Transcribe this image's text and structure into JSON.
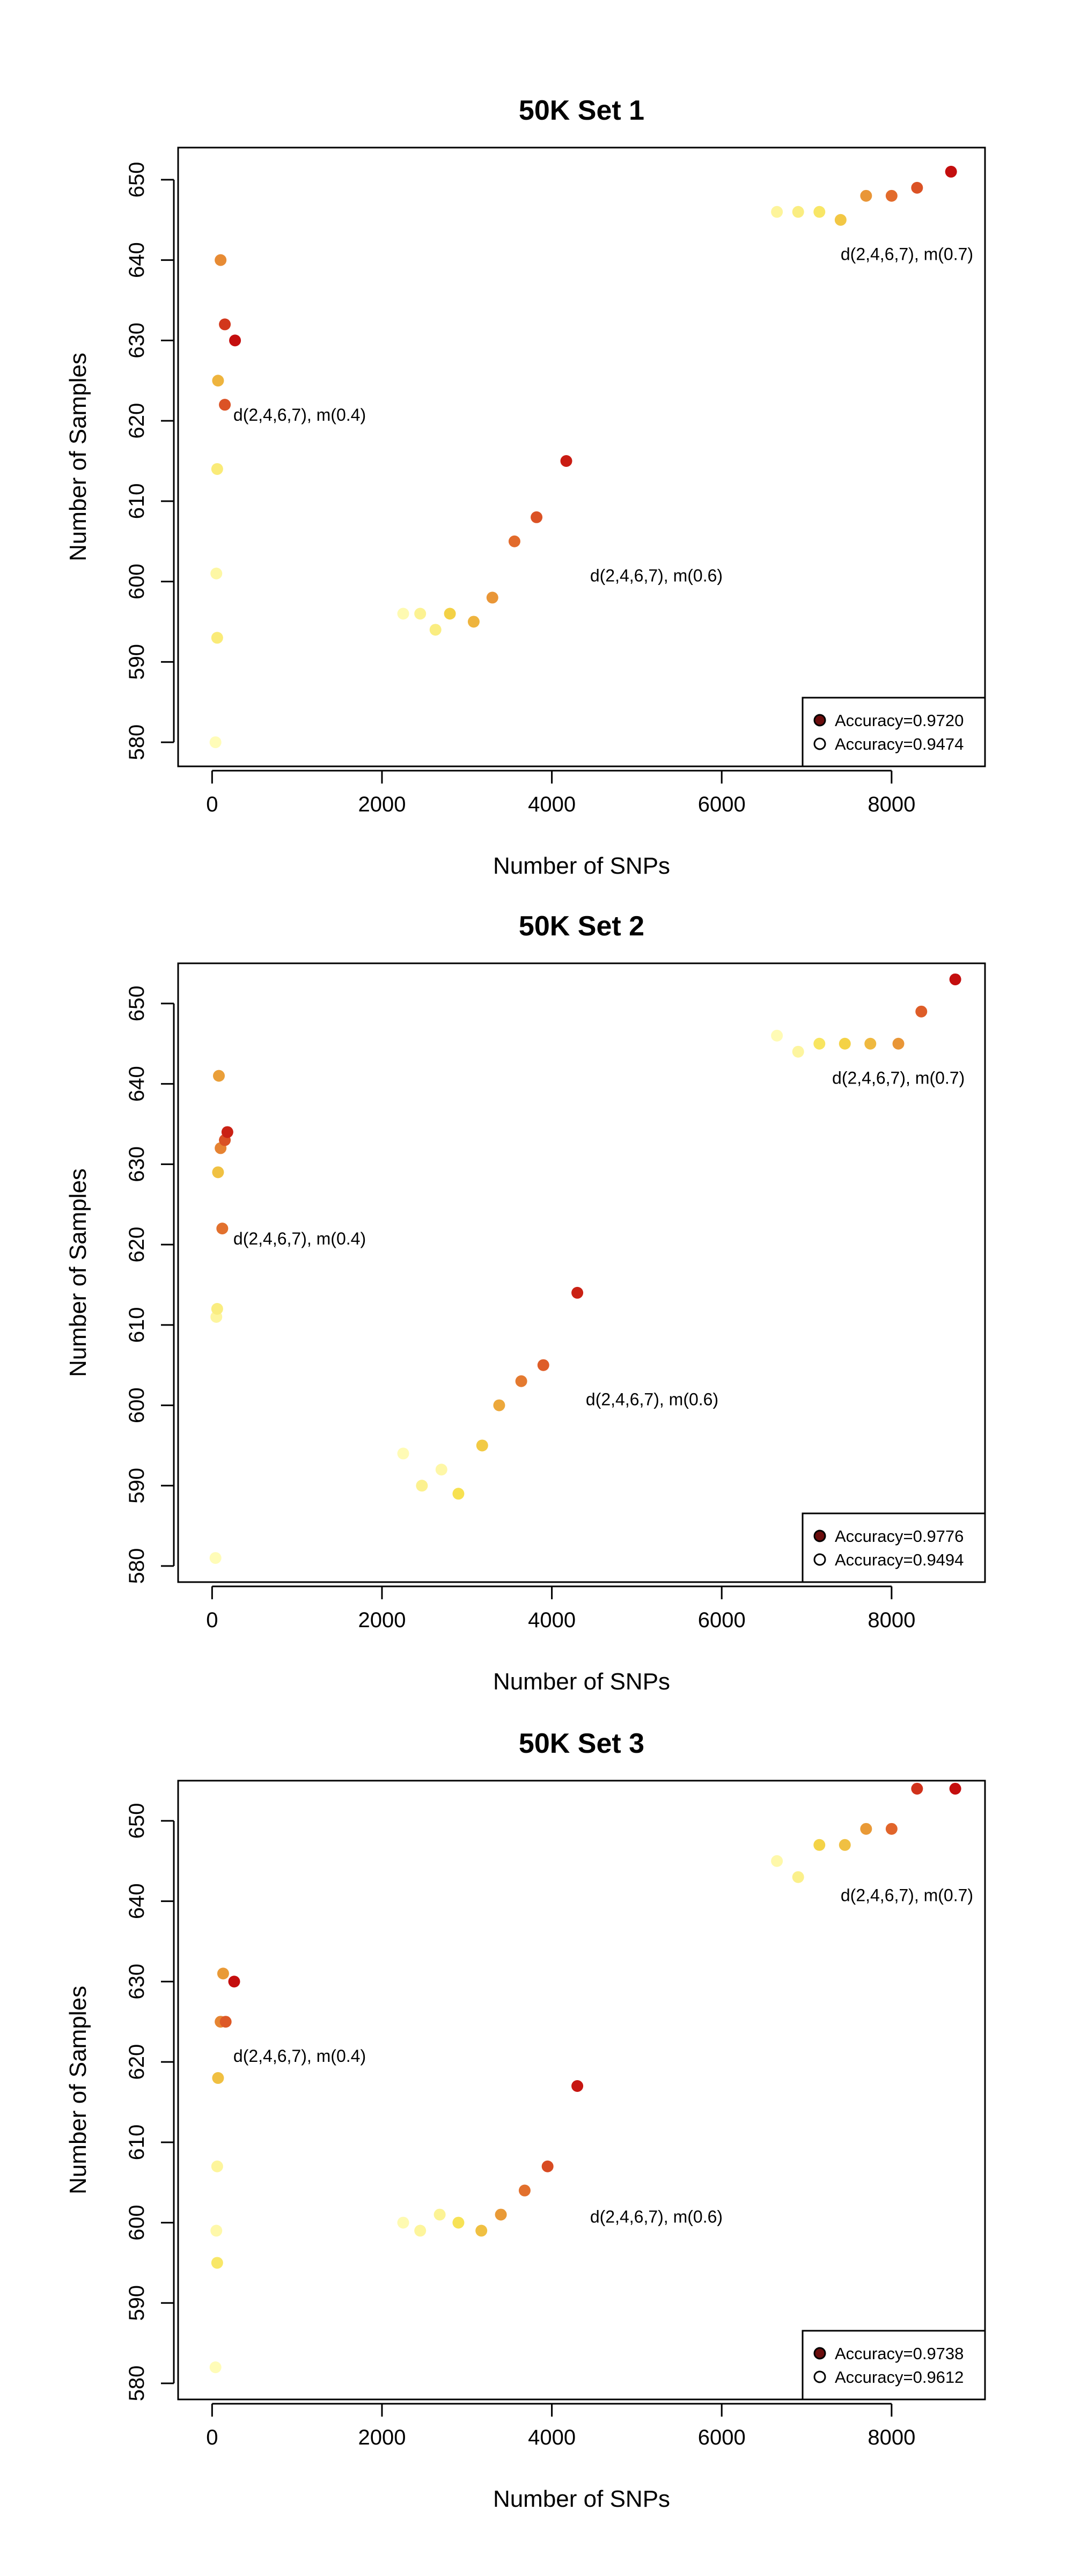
{
  "chart_data": [
    {
      "type": "scatter",
      "title": "50K Set 1",
      "xlabel": "Number of SNPs",
      "ylabel": "Number of Samples",
      "xlim": [
        -400,
        9100
      ],
      "ylim": [
        577,
        654
      ],
      "xticks": [
        "0",
        "2000",
        "4000",
        "6000",
        "8000"
      ],
      "yticks": [
        "580",
        "590",
        "600",
        "610",
        "620",
        "630",
        "640",
        "650"
      ],
      "grid": false,
      "legend_position": "bottom-right",
      "legend": [
        "Accuracy=0.9720",
        "Accuracy=0.9474"
      ],
      "color_scale": {
        "low": "#fffcb8",
        "high": "#c40e0e",
        "low_accuracy": 0.9474,
        "high_accuracy": 0.972
      },
      "annotations": [
        {
          "text": "d(2,4,6,7), m(0.4)",
          "x": 250,
          "y": 620
        },
        {
          "text": "d(2,4,6,7), m(0.6)",
          "x": 4450,
          "y": 600
        },
        {
          "text": "d(2,4,6,7), m(0.7)",
          "x": 7400,
          "y": 640
        }
      ],
      "points": [
        {
          "x": 40,
          "y": 580,
          "acc": 0.9474
        },
        {
          "x": 60,
          "y": 593,
          "acc": 0.951
        },
        {
          "x": 50,
          "y": 601,
          "acc": 0.9485
        },
        {
          "x": 60,
          "y": 614,
          "acc": 0.951
        },
        {
          "x": 70,
          "y": 625,
          "acc": 0.958
        },
        {
          "x": 100,
          "y": 640,
          "acc": 0.962
        },
        {
          "x": 150,
          "y": 622,
          "acc": 0.967
        },
        {
          "x": 150,
          "y": 632,
          "acc": 0.969
        },
        {
          "x": 270,
          "y": 630,
          "acc": 0.972
        },
        {
          "x": 2250,
          "y": 596,
          "acc": 0.9478
        },
        {
          "x": 2450,
          "y": 596,
          "acc": 0.9495
        },
        {
          "x": 2630,
          "y": 594,
          "acc": 0.9505
        },
        {
          "x": 2800,
          "y": 596,
          "acc": 0.955
        },
        {
          "x": 3080,
          "y": 595,
          "acc": 0.958
        },
        {
          "x": 3300,
          "y": 598,
          "acc": 0.961
        },
        {
          "x": 3560,
          "y": 605,
          "acc": 0.965
        },
        {
          "x": 3820,
          "y": 608,
          "acc": 0.967
        },
        {
          "x": 4170,
          "y": 615,
          "acc": 0.971
        },
        {
          "x": 6650,
          "y": 646,
          "acc": 0.949
        },
        {
          "x": 6900,
          "y": 646,
          "acc": 0.9505
        },
        {
          "x": 7150,
          "y": 646,
          "acc": 0.952
        },
        {
          "x": 7400,
          "y": 645,
          "acc": 0.956
        },
        {
          "x": 7700,
          "y": 648,
          "acc": 0.961
        },
        {
          "x": 8000,
          "y": 648,
          "acc": 0.965
        },
        {
          "x": 8300,
          "y": 649,
          "acc": 0.967
        },
        {
          "x": 8700,
          "y": 651,
          "acc": 0.972
        }
      ]
    },
    {
      "type": "scatter",
      "title": "50K Set 2",
      "xlabel": "Number of SNPs",
      "ylabel": "Number of Samples",
      "xlim": [
        -400,
        9100
      ],
      "ylim": [
        578,
        655
      ],
      "xticks": [
        "0",
        "2000",
        "4000",
        "6000",
        "8000"
      ],
      "yticks": [
        "580",
        "590",
        "600",
        "610",
        "620",
        "630",
        "640",
        "650"
      ],
      "grid": false,
      "legend_position": "bottom-right",
      "legend": [
        "Accuracy=0.9776",
        "Accuracy=0.9494"
      ],
      "color_scale": {
        "low": "#fffcb8",
        "high": "#c40e0e",
        "low_accuracy": 0.9494,
        "high_accuracy": 0.9776
      },
      "annotations": [
        {
          "text": "d(2,4,6,7), m(0.4)",
          "x": 250,
          "y": 620
        },
        {
          "text": "d(2,4,6,7), m(0.6)",
          "x": 4400,
          "y": 600
        },
        {
          "text": "d(2,4,6,7), m(0.7)",
          "x": 7300,
          "y": 640
        }
      ],
      "points": [
        {
          "x": 40,
          "y": 581,
          "acc": 0.9494
        },
        {
          "x": 50,
          "y": 611,
          "acc": 0.951
        },
        {
          "x": 60,
          "y": 612,
          "acc": 0.953
        },
        {
          "x": 70,
          "y": 629,
          "acc": 0.96
        },
        {
          "x": 80,
          "y": 641,
          "acc": 0.964
        },
        {
          "x": 100,
          "y": 632,
          "acc": 0.967
        },
        {
          "x": 120,
          "y": 622,
          "acc": 0.969
        },
        {
          "x": 150,
          "y": 633,
          "acc": 0.972
        },
        {
          "x": 180,
          "y": 634,
          "acc": 0.976
        },
        {
          "x": 2250,
          "y": 594,
          "acc": 0.9496
        },
        {
          "x": 2470,
          "y": 590,
          "acc": 0.952
        },
        {
          "x": 2700,
          "y": 592,
          "acc": 0.9505
        },
        {
          "x": 2900,
          "y": 589,
          "acc": 0.956
        },
        {
          "x": 3180,
          "y": 595,
          "acc": 0.959
        },
        {
          "x": 3380,
          "y": 600,
          "acc": 0.963
        },
        {
          "x": 3640,
          "y": 603,
          "acc": 0.968
        },
        {
          "x": 3900,
          "y": 605,
          "acc": 0.971
        },
        {
          "x": 4300,
          "y": 614,
          "acc": 0.976
        },
        {
          "x": 6650,
          "y": 646,
          "acc": 0.9496
        },
        {
          "x": 6900,
          "y": 644,
          "acc": 0.951
        },
        {
          "x": 7150,
          "y": 645,
          "acc": 0.955
        },
        {
          "x": 7450,
          "y": 645,
          "acc": 0.958
        },
        {
          "x": 7750,
          "y": 645,
          "acc": 0.961
        },
        {
          "x": 8080,
          "y": 645,
          "acc": 0.965
        },
        {
          "x": 8350,
          "y": 649,
          "acc": 0.971
        },
        {
          "x": 8750,
          "y": 653,
          "acc": 0.9776
        }
      ]
    },
    {
      "type": "scatter",
      "title": "50K Set 3",
      "xlabel": "Number of SNPs",
      "ylabel": "Number of Samples",
      "xlim": [
        -400,
        9100
      ],
      "ylim": [
        578,
        655
      ],
      "xticks": [
        "0",
        "2000",
        "4000",
        "6000",
        "8000"
      ],
      "yticks": [
        "580",
        "590",
        "600",
        "610",
        "620",
        "630",
        "640",
        "650"
      ],
      "grid": false,
      "legend_position": "bottom-right",
      "legend": [
        "Accuracy=0.9738",
        "Accuracy=0.9612"
      ],
      "color_scale": {
        "low": "#fffcb8",
        "high": "#c40e0e",
        "low_accuracy": 0.9612,
        "high_accuracy": 0.9738
      },
      "annotations": [
        {
          "text": "d(2,4,6,7), m(0.4)",
          "x": 250,
          "y": 620
        },
        {
          "text": "d(2,4,6,7), m(0.6)",
          "x": 4450,
          "y": 600
        },
        {
          "text": "d(2,4,6,7), m(0.7)",
          "x": 7400,
          "y": 640
        }
      ],
      "points": [
        {
          "x": 40,
          "y": 582,
          "acc": 0.9612
        },
        {
          "x": 60,
          "y": 595,
          "acc": 0.9635
        },
        {
          "x": 50,
          "y": 599,
          "acc": 0.9616
        },
        {
          "x": 60,
          "y": 607,
          "acc": 0.962
        },
        {
          "x": 70,
          "y": 618,
          "acc": 0.966
        },
        {
          "x": 100,
          "y": 625,
          "acc": 0.969
        },
        {
          "x": 130,
          "y": 631,
          "acc": 0.968
        },
        {
          "x": 160,
          "y": 625,
          "acc": 0.971
        },
        {
          "x": 260,
          "y": 630,
          "acc": 0.9738
        },
        {
          "x": 2250,
          "y": 600,
          "acc": 0.9614
        },
        {
          "x": 2450,
          "y": 599,
          "acc": 0.962
        },
        {
          "x": 2680,
          "y": 601,
          "acc": 0.9622
        },
        {
          "x": 2900,
          "y": 600,
          "acc": 0.964
        },
        {
          "x": 3170,
          "y": 599,
          "acc": 0.966
        },
        {
          "x": 3400,
          "y": 601,
          "acc": 0.968
        },
        {
          "x": 3680,
          "y": 604,
          "acc": 0.97
        },
        {
          "x": 3950,
          "y": 607,
          "acc": 0.9715
        },
        {
          "x": 4300,
          "y": 617,
          "acc": 0.9735
        },
        {
          "x": 6650,
          "y": 645,
          "acc": 0.9616
        },
        {
          "x": 6900,
          "y": 643,
          "acc": 0.9625
        },
        {
          "x": 7150,
          "y": 647,
          "acc": 0.965
        },
        {
          "x": 7450,
          "y": 647,
          "acc": 0.966
        },
        {
          "x": 7700,
          "y": 649,
          "acc": 0.968
        },
        {
          "x": 8000,
          "y": 649,
          "acc": 0.9705
        },
        {
          "x": 8300,
          "y": 654,
          "acc": 0.9725
        },
        {
          "x": 8750,
          "y": 654,
          "acc": 0.9738
        }
      ]
    }
  ]
}
